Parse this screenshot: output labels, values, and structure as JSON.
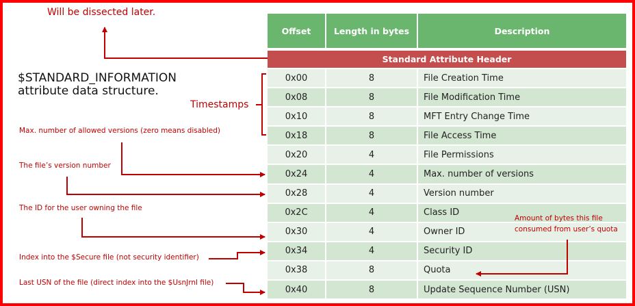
{
  "annotations": {
    "dissected": "Will be dissected later.",
    "timestamps": "Timestamps",
    "max_versions": "Max. number of allowed versions (zero means disabled)",
    "version_number": "The file’s version number",
    "owner_id": "The ID for the user owning the file",
    "security_id": "Index into the $Secure file (not security identifier)",
    "usn": "Last USN of the file (direct index into the $UsnJrnl file)",
    "quota_line1": "Amount of bytes this file",
    "quota_line2": "consumed from user’s quota"
  },
  "title": {
    "line1": "$STANDARD_INFORMATION",
    "line2": "attribute data structure."
  },
  "colors": {
    "header_green": "#6bb66f",
    "band_red": "#c44d4d",
    "annotation_red": "#c00000",
    "frame_red": "#ff0000"
  },
  "table": {
    "headers": [
      "Offset",
      "Length in bytes",
      "Description"
    ],
    "band": "Standard Attribute Header",
    "rows": [
      {
        "offset": "0x00",
        "length": "8",
        "description": "File Creation Time"
      },
      {
        "offset": "0x08",
        "length": "8",
        "description": "File Modification Time"
      },
      {
        "offset": "0x10",
        "length": "8",
        "description": "MFT Entry Change Time"
      },
      {
        "offset": "0x18",
        "length": "8",
        "description": "File Access Time"
      },
      {
        "offset": "0x20",
        "length": "4",
        "description": "File Permissions"
      },
      {
        "offset": "0x24",
        "length": "4",
        "description": "Max. number of versions"
      },
      {
        "offset": "0x28",
        "length": "4",
        "description": "Version number"
      },
      {
        "offset": "0x2C",
        "length": "4",
        "description": "Class ID"
      },
      {
        "offset": "0x30",
        "length": "4",
        "description": "Owner ID"
      },
      {
        "offset": "0x34",
        "length": "4",
        "description": "Security ID"
      },
      {
        "offset": "0x38",
        "length": "8",
        "description": "Quota"
      },
      {
        "offset": "0x40",
        "length": "8",
        "description": "Update Sequence Number (USN)"
      }
    ]
  }
}
